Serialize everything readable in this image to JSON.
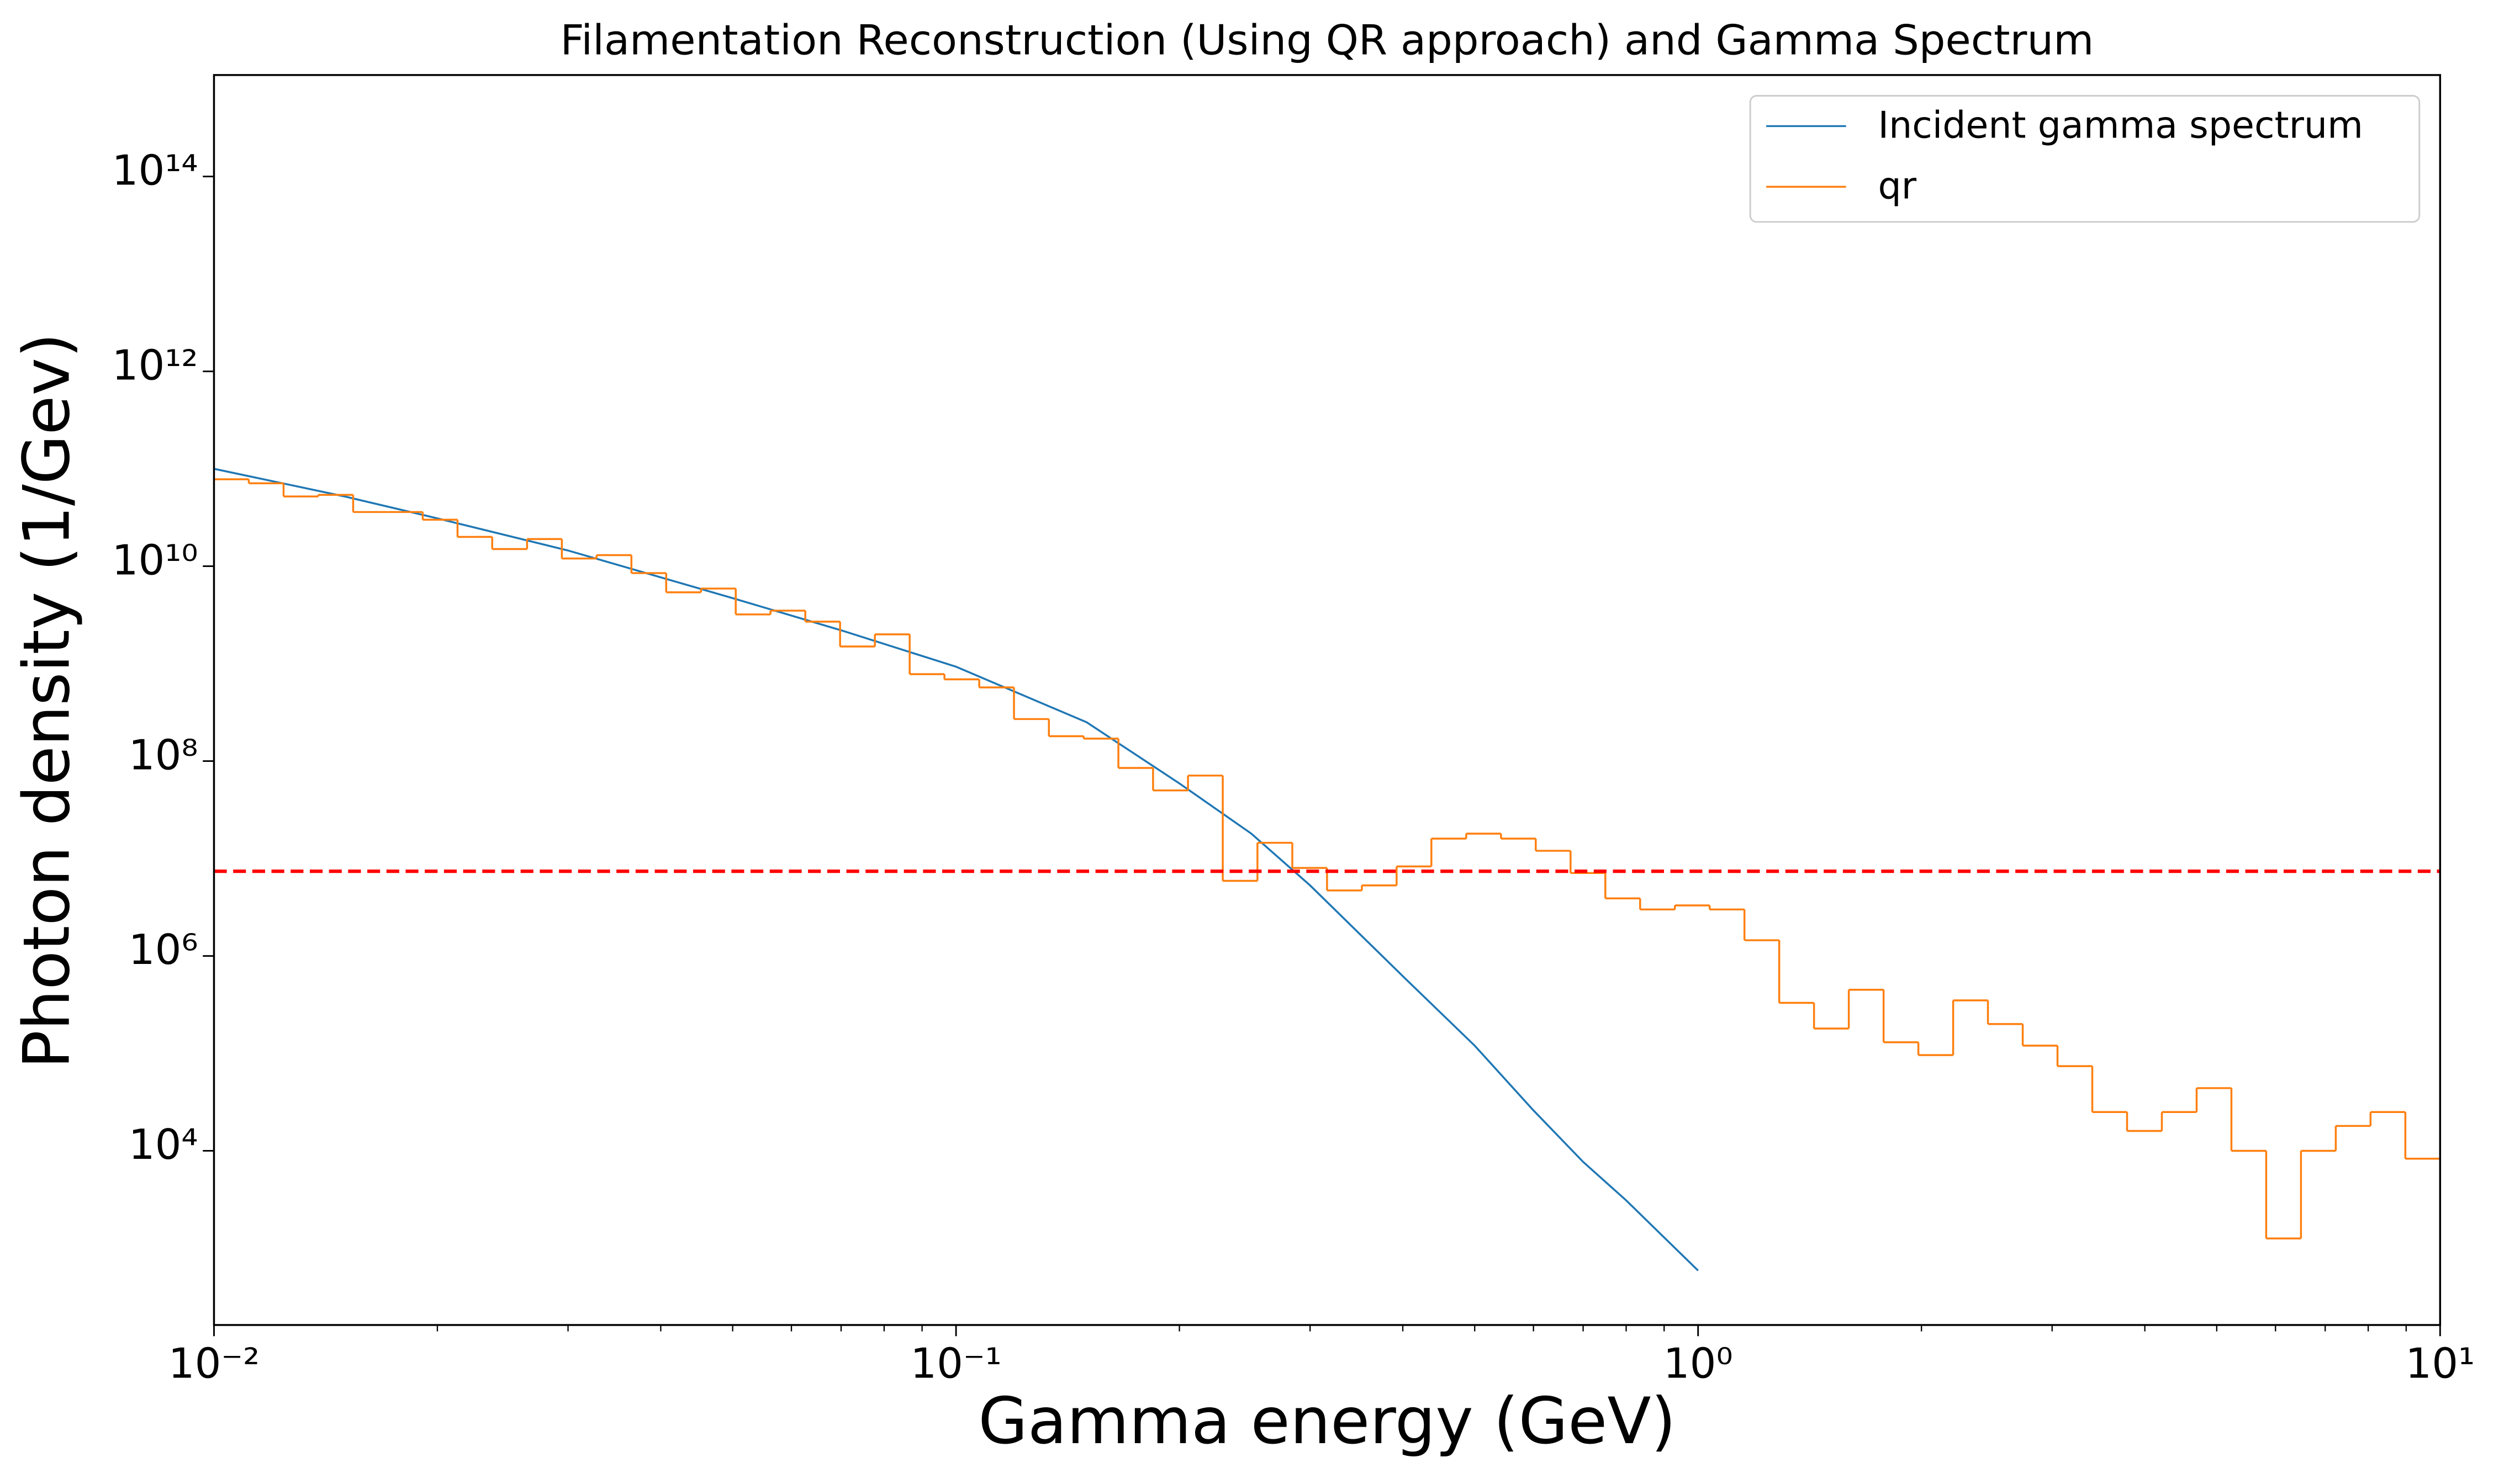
{
  "chart_data": {
    "type": "line",
    "title": "Filamentation Reconstruction (Using QR approach) and Gamma Spectrum",
    "xlabel": "Gamma energy (GeV)",
    "ylabel": "Photon density (1/Gev)",
    "xscale": "log",
    "yscale": "log",
    "xlim": [
      0.01,
      10
    ],
    "ylim": [
      163,
      1100000000000000.0
    ],
    "xticks": [
      {
        "value": 0.01,
        "label": "10⁻²"
      },
      {
        "value": 0.1,
        "label": "10⁻¹"
      },
      {
        "value": 1,
        "label": "10⁰"
      },
      {
        "value": 10,
        "label": "10¹"
      }
    ],
    "x_minor_ticks": [
      0.02,
      0.03,
      0.04,
      0.05,
      0.06,
      0.07,
      0.08,
      0.09,
      0.2,
      0.3,
      0.4,
      0.5,
      0.6,
      0.7,
      0.8,
      0.9,
      2,
      3,
      4,
      5,
      6,
      7,
      8,
      9
    ],
    "yticks": [
      {
        "value": 10000,
        "label": "10⁴"
      },
      {
        "value": 1000000,
        "label": "10⁶"
      },
      {
        "value": 100000000,
        "label": "10⁸"
      },
      {
        "value": 10000000000,
        "label": "10¹⁰"
      },
      {
        "value": 1000000000000,
        "label": "10¹²"
      },
      {
        "value": 100000000000000,
        "label": "10¹⁴"
      }
    ],
    "legend": "upper right",
    "hline": {
      "value": 7400000,
      "color": "#ff0000",
      "style": "dashed"
    },
    "series": [
      {
        "name": "Incident gamma spectrum",
        "color": "#1f77b4",
        "type": "line",
        "x": [
          0.01,
          0.015,
          0.02,
          0.03,
          0.05,
          0.07,
          0.1,
          0.15,
          0.2,
          0.25,
          0.3,
          0.4,
          0.5,
          0.6,
          0.7,
          0.8,
          1.0
        ],
        "values": [
          100000000000.0,
          52000000000.0,
          31000000000.0,
          14500000000.0,
          4700000000.0,
          2200000000.0,
          930000000.0,
          250000000.0,
          59000000.0,
          18000000.0,
          5300000.0,
          620000.0,
          120000.0,
          26000.0,
          7700.0,
          3100.0,
          590
        ]
      },
      {
        "name": "qr",
        "color": "#ff7f0e",
        "type": "step",
        "bins": [
          0.01,
          0.01114,
          0.01241,
          0.01382,
          0.0154,
          0.01715,
          0.01911,
          0.02129,
          0.02371,
          0.02642,
          0.02943,
          0.03278,
          0.03652,
          0.04068,
          0.04532,
          0.05048,
          0.05623,
          0.06264,
          0.06978,
          0.07774,
          0.0866,
          0.09647,
          0.10746,
          0.1197,
          0.1334,
          0.1486,
          0.1655,
          0.1843,
          0.2054,
          0.2288,
          0.2548,
          0.2839,
          0.3162,
          0.3523,
          0.3924,
          0.4371,
          0.487,
          0.5425,
          0.6043,
          0.6732,
          0.7499,
          0.8354,
          0.9306,
          1.0366,
          1.1548,
          1.2864,
          1.433,
          1.5963,
          1.7783,
          1.981,
          2.2067,
          2.4582,
          2.7384,
          3.0505,
          3.3982,
          3.7855,
          4.217,
          4.6976,
          5.233,
          5.8294,
          6.4938,
          7.2339,
          8.0584,
          8.9768,
          10
        ],
        "values": [
          78000000000.0,
          71000000000.0,
          52000000000.0,
          54000000000.0,
          36000000000.0,
          36000000000.0,
          30000000000.0,
          20000000000.0,
          15000000000.0,
          19000000000.0,
          12000000000.0,
          13000000000.0,
          8500000000.0,
          5400000000.0,
          5900000000.0,
          3200000000.0,
          3500000000.0,
          2700000000.0,
          1500000000.0,
          2000000000.0,
          780000000.0,
          690000000.0,
          570000000.0,
          270000000.0,
          180000000.0,
          170000000.0,
          85000000.0,
          50000000.0,
          71000000.0,
          5900000.0,
          14500000.0,
          8000000.0,
          4700000.0,
          5300000.0,
          8300000.0,
          16000000.0,
          18000000.0,
          16000000.0,
          12000000.0,
          7100000.0,
          3900000.0,
          3000000.0,
          3300000.0,
          3000000.0,
          1450000.0,
          330000.0,
          180000.0,
          450000.0,
          130000.0,
          96000.0,
          350000.0,
          200000.0,
          120000.0,
          74000.0,
          25000.0,
          16000.0,
          25000.0,
          44000.0,
          10000.0,
          1260.0,
          10000.0,
          18000.0,
          25000.0,
          8300.0
        ]
      }
    ]
  }
}
